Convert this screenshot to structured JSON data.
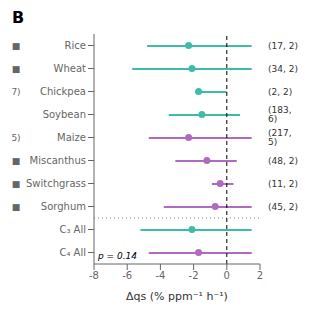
{
  "chart_data": {
    "type": "interval",
    "title": "B",
    "xlabel": "Δqs (% ppm⁻¹ h⁻¹)",
    "categories": [
      "Rice",
      "Wheat",
      "Chickpea",
      "Soybean",
      "Maize",
      "Miscanthus",
      "Switchgrass",
      "Sorghum",
      "C₃ All",
      "C₄ All"
    ],
    "values": [
      -2.3,
      -2.1,
      -1.7,
      -1.5,
      -2.3,
      -1.2,
      -0.4,
      -0.7,
      -2.1,
      -1.7
    ],
    "ci_low": [
      -4.8,
      -5.7,
      -1.9,
      -3.5,
      -4.7,
      -3.1,
      -0.9,
      -3.8,
      -5.2,
      -4.7
    ],
    "ci_high": [
      1.5,
      1.5,
      0.0,
      0.8,
      1.5,
      0.6,
      0.4,
      1.5,
      1.5,
      1.5
    ],
    "colors": [
      "#3dbda8",
      "#3dbda8",
      "#3dbda8",
      "#3dbda8",
      "#b06abf",
      "#b06abf",
      "#b06abf",
      "#b06abf",
      "#3dbda8",
      "#b06abf"
    ],
    "row_labels": [
      "(17, 2)",
      "(34, 2)",
      "(2, 2)",
      "(183, 6)",
      "(217, 5)",
      "(48, 2)",
      "(11, 2)",
      "(45, 2)",
      null,
      null
    ],
    "margin_labels": [
      "■",
      "■",
      "7)",
      null,
      "5)",
      "■",
      "■",
      "■",
      null,
      null
    ],
    "note": "p = 0.14",
    "reference_x": 0,
    "separator_before": "C₃ All",
    "xlim": [
      -8,
      2
    ],
    "xticks": [
      -8,
      -6,
      -4,
      -2,
      0,
      2
    ],
    "orientation": "horizontal",
    "grid": false
  }
}
